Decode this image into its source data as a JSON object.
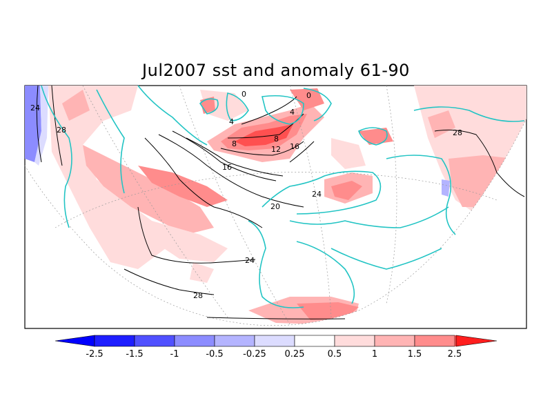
{
  "title": "Jul2007 sst and anomaly 61-90",
  "colors": {
    "anom_neg_25": "#1e1eff",
    "anom_neg_15": "#5050ff",
    "anom_neg_1": "#8c8cff",
    "anom_neg_05": "#b4b4ff",
    "anom_neg_025": "#dcdcff",
    "anom_pos_025": "#ffdcdc",
    "anom_pos_05": "#ffb4b4",
    "anom_pos_1": "#ff8c8c",
    "anom_pos_15": "#ff5050",
    "anom_pos_25": "#ff1e1e",
    "coast": "#22c4c4",
    "contour": "#000000"
  },
  "colorbar": {
    "labels": [
      "-2.5",
      "-1.5",
      "-1",
      "-0.5",
      "-0.25",
      "0.25",
      "0.5",
      "1",
      "1.5",
      "2.5"
    ]
  },
  "contour_labels": [
    "24",
    "28",
    "16",
    "20",
    "24",
    "28",
    "4",
    "0",
    "8",
    "12",
    "16",
    "24",
    "28",
    "4",
    "8",
    "0"
  ]
}
